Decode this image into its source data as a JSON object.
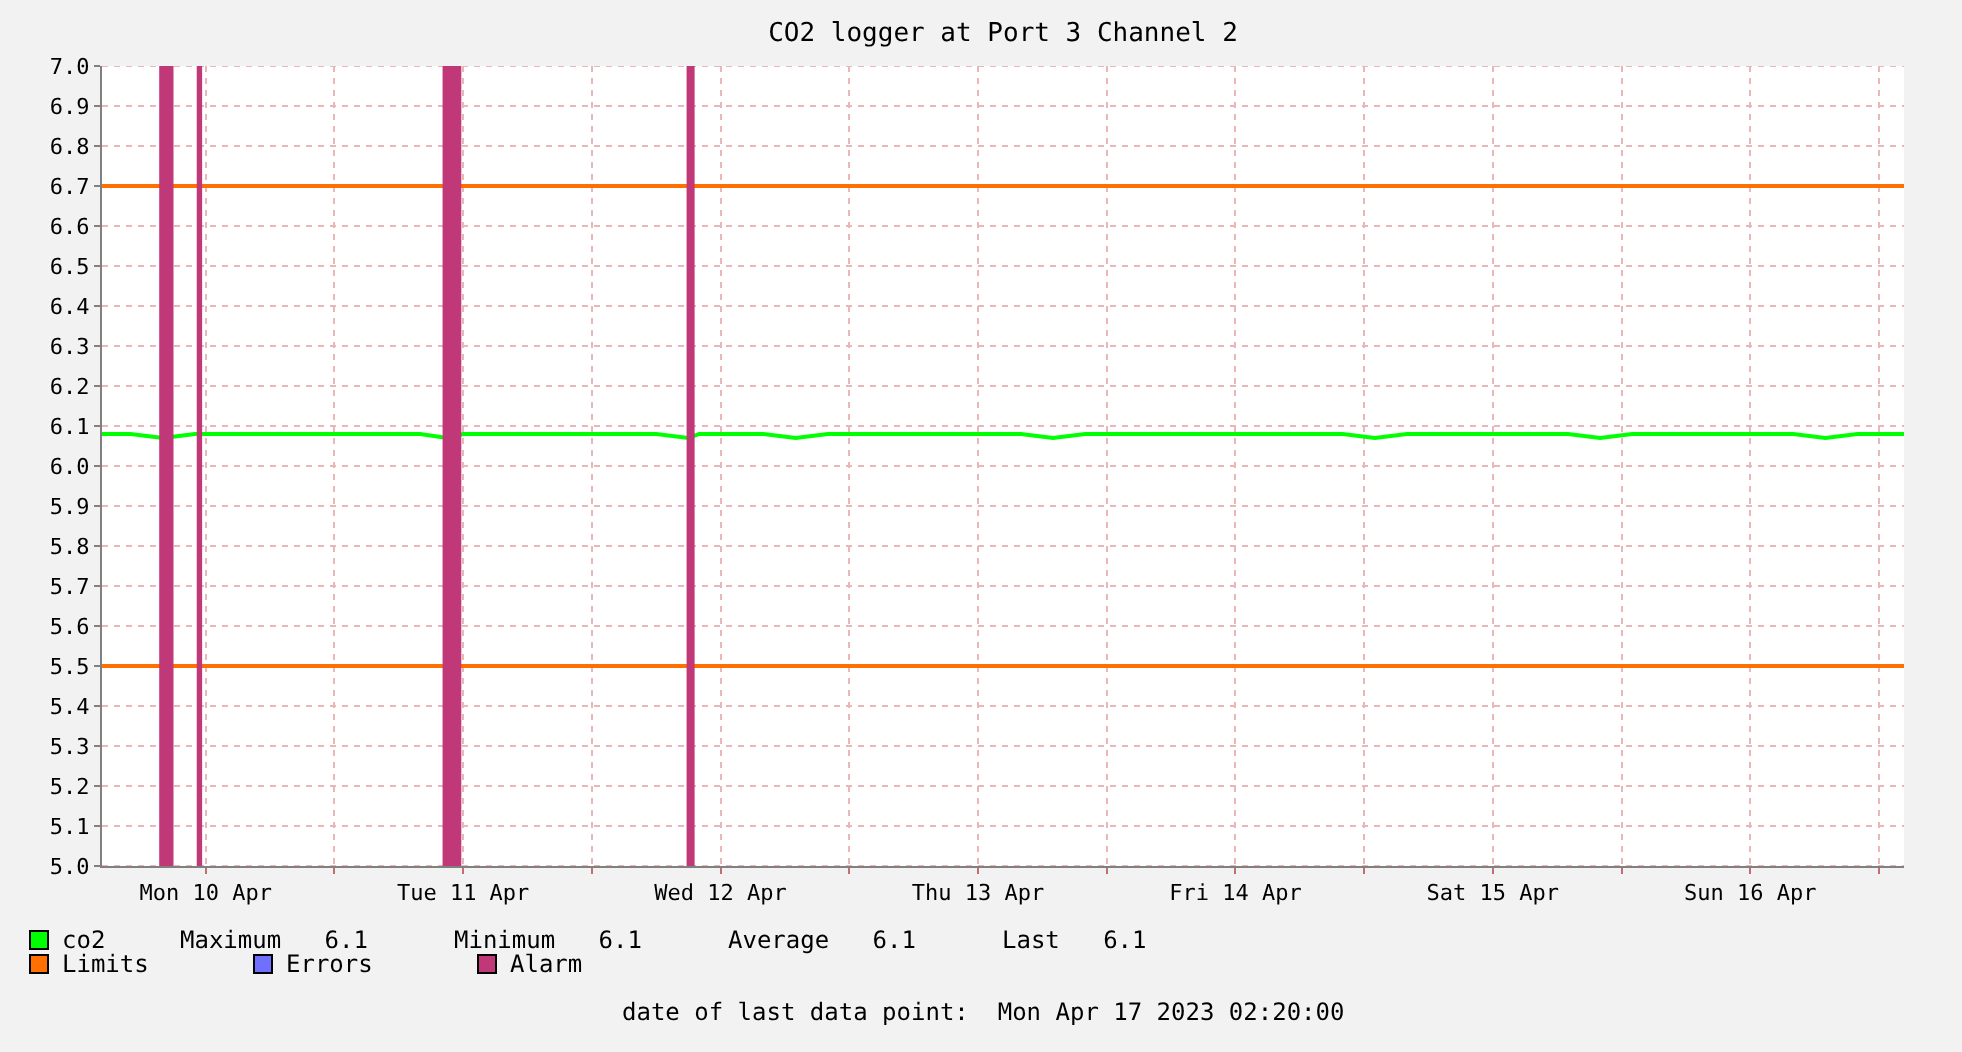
{
  "chart_data": {
    "type": "line",
    "title": "CO2 logger at Port 3 Channel 2",
    "x": [
      "2023-04-10T02:20",
      "2023-04-10T05:00",
      "2023-04-10T08:00",
      "2023-04-10T11:00",
      "2023-04-10T14:00",
      "2023-04-10T17:00",
      "2023-04-10T20:00",
      "2023-04-10T23:00",
      "2023-04-11T02:00",
      "2023-04-11T05:00",
      "2023-04-11T08:00",
      "2023-04-11T10:30",
      "2023-04-11T12:00",
      "2023-04-11T15:00",
      "2023-04-11T18:00",
      "2023-04-11T21:00",
      "2023-04-12T00:00",
      "2023-04-12T03:00",
      "2023-04-12T06:00",
      "2023-04-12T09:00",
      "2023-04-12T10:00",
      "2023-04-12T13:00",
      "2023-04-12T16:00",
      "2023-04-12T19:00",
      "2023-04-12T22:00",
      "2023-04-13T01:00",
      "2023-04-13T04:00",
      "2023-04-13T07:00",
      "2023-04-13T10:00",
      "2023-04-13T13:00",
      "2023-04-13T16:00",
      "2023-04-13T19:00",
      "2023-04-13T22:00",
      "2023-04-14T01:00",
      "2023-04-14T04:00",
      "2023-04-14T07:00",
      "2023-04-14T10:00",
      "2023-04-14T13:00",
      "2023-04-14T16:00",
      "2023-04-14T19:00",
      "2023-04-14T22:00",
      "2023-04-15T01:00",
      "2023-04-15T04:00",
      "2023-04-15T07:00",
      "2023-04-15T10:00",
      "2023-04-15T13:00",
      "2023-04-15T16:00",
      "2023-04-15T19:00",
      "2023-04-15T22:00",
      "2023-04-16T01:00",
      "2023-04-16T04:00",
      "2023-04-16T07:00",
      "2023-04-16T10:00",
      "2023-04-16T13:00",
      "2023-04-16T16:00",
      "2023-04-16T19:00",
      "2023-04-16T22:00",
      "2023-04-17T02:20"
    ],
    "series": [
      {
        "name": "co2",
        "color": "#00ff00",
        "values": [
          6.08,
          6.08,
          6.07,
          6.08,
          6.08,
          6.08,
          6.08,
          6.08,
          6.08,
          6.08,
          6.08,
          6.07,
          6.08,
          6.08,
          6.08,
          6.08,
          6.08,
          6.08,
          6.08,
          6.07,
          6.08,
          6.08,
          6.08,
          6.07,
          6.08,
          6.08,
          6.08,
          6.08,
          6.08,
          6.08,
          6.08,
          6.07,
          6.08,
          6.08,
          6.08,
          6.08,
          6.08,
          6.08,
          6.08,
          6.08,
          6.08,
          6.07,
          6.08,
          6.08,
          6.08,
          6.08,
          6.08,
          6.08,
          6.07,
          6.08,
          6.08,
          6.08,
          6.08,
          6.08,
          6.08,
          6.07,
          6.08,
          6.08
        ]
      },
      {
        "name": "Limits",
        "color": "#ff7000",
        "x": [
          "2023-04-10T02:20",
          "2023-04-17T02:20"
        ],
        "values": [
          6.7,
          6.7
        ]
      },
      {
        "color": "#ff7000",
        "x": [
          "2023-04-10T02:20",
          "2023-04-17T02:20"
        ],
        "values": [
          5.5,
          5.5
        ]
      },
      {
        "name": "Errors",
        "color": "#7070ff",
        "values": [
          null,
          null,
          null,
          null,
          null,
          null,
          null,
          null,
          null,
          null,
          null,
          null,
          null,
          null,
          null,
          null,
          null,
          null,
          null,
          null,
          null,
          null,
          null,
          null,
          null,
          null,
          null,
          null,
          null,
          null,
          null,
          null,
          null,
          null,
          null,
          null,
          null,
          null,
          null,
          null,
          null,
          null,
          null,
          null,
          null,
          null,
          null,
          null,
          null,
          null,
          null,
          null,
          null,
          null,
          null,
          null,
          null,
          null
        ]
      }
    ],
    "bands": [
      {
        "axis": "x",
        "from": "2023-04-10T07:40",
        "to": "2023-04-10T09:00",
        "label": "Alarm",
        "color": "#c03878"
      },
      {
        "axis": "x",
        "from": "2023-04-10T11:10",
        "to": "2023-04-10T11:40",
        "color": "#c03878"
      },
      {
        "axis": "x",
        "from": "2023-04-11T10:05",
        "to": "2023-04-11T11:50",
        "color": "#c03878"
      },
      {
        "axis": "x",
        "from": "2023-04-12T08:50",
        "to": "2023-04-12T09:35",
        "color": "#c03878"
      }
    ],
    "annotations": [
      "Maximum   6.1",
      "Minimum   6.1",
      "Average   6.1",
      "Last   6.1",
      "date of last data point:  Mon Apr 17 2023 02:20:00"
    ],
    "xlim": [
      "2023-04-10T02:20",
      "2023-04-17T02:20"
    ],
    "xticks": [
      {
        "value": "2023-04-10T12:00",
        "label": "Mon 10 Apr"
      },
      {
        "value": "2023-04-11T00:00",
        "label": null
      },
      {
        "value": "2023-04-11T12:00",
        "label": "Tue 11 Apr"
      },
      {
        "value": "2023-04-12T00:00",
        "label": null
      },
      {
        "value": "2023-04-12T12:00",
        "label": "Wed 12 Apr"
      },
      {
        "value": "2023-04-13T00:00",
        "label": null
      },
      {
        "value": "2023-04-13T12:00",
        "label": "Thu 13 Apr"
      },
      {
        "value": "2023-04-14T00:00",
        "label": null
      },
      {
        "value": "2023-04-14T12:00",
        "label": "Fri 14 Apr"
      },
      {
        "value": "2023-04-15T00:00",
        "label": null
      },
      {
        "value": "2023-04-15T12:00",
        "label": "Sat 15 Apr"
      },
      {
        "value": "2023-04-16T00:00",
        "label": null
      },
      {
        "value": "2023-04-16T12:00",
        "label": "Sun 16 Apr"
      },
      {
        "value": "2023-04-17T00:00",
        "label": null
      }
    ],
    "ylim": [
      5.0,
      7.0
    ],
    "yticks": [
      {
        "value": 5.0,
        "label": "5.0"
      },
      5.1,
      5.2,
      5.3,
      5.4,
      5.5,
      5.6,
      5.7,
      5.8,
      5.9,
      {
        "value": 6.0,
        "label": "6.0"
      },
      6.1,
      6.2,
      6.3,
      6.4,
      6.5,
      6.6,
      6.7,
      6.8,
      6.9,
      {
        "value": 7.0,
        "label": "7.0"
      }
    ],
    "grid": true,
    "legend": "bottom",
    "marker": "none",
    "line_style": "solid"
  }
}
